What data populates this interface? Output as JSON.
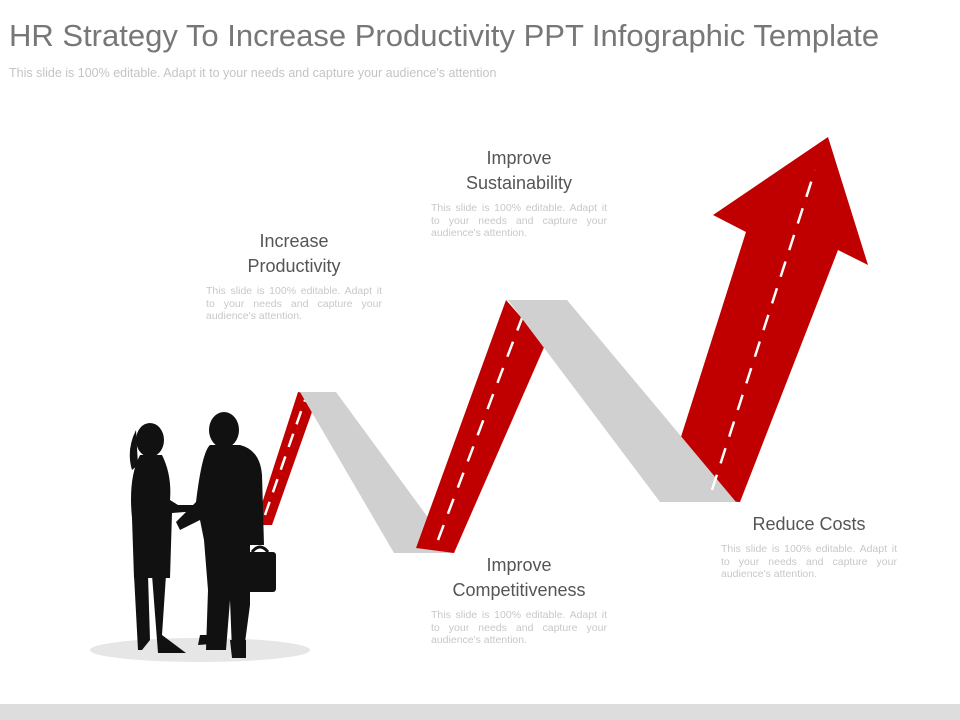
{
  "title": "HR Strategy To Increase Productivity PPT Infographic Template",
  "subtitle": "This slide is 100% editable. Adapt it to your needs and capture your audience's attention",
  "colors": {
    "arrow_red": "#c00000",
    "fold_grey": "#d0d0d0",
    "silhouette": "#111111"
  },
  "steps": [
    {
      "title_line1": "Increase",
      "title_line2": "Productivity",
      "text": "This slide is 100% editable. Adapt it to your needs and capture your audience's attention."
    },
    {
      "title_line1": "Improve",
      "title_line2": "Sustainability",
      "text": "This slide is 100% editable. Adapt it to your needs and capture your audience's attention."
    },
    {
      "title_line1": "Improve",
      "title_line2": "Competitiveness",
      "text": "This slide is 100% editable. Adapt it to your needs and capture your audience's attention."
    },
    {
      "title_line1": "Reduce Costs",
      "title_line2": "",
      "text": "This slide is 100% editable. Adapt it to your needs and capture your audience's attention."
    }
  ],
  "icons": [
    "zigzag-arrow-graphic",
    "business-people-handshake-silhouette"
  ]
}
